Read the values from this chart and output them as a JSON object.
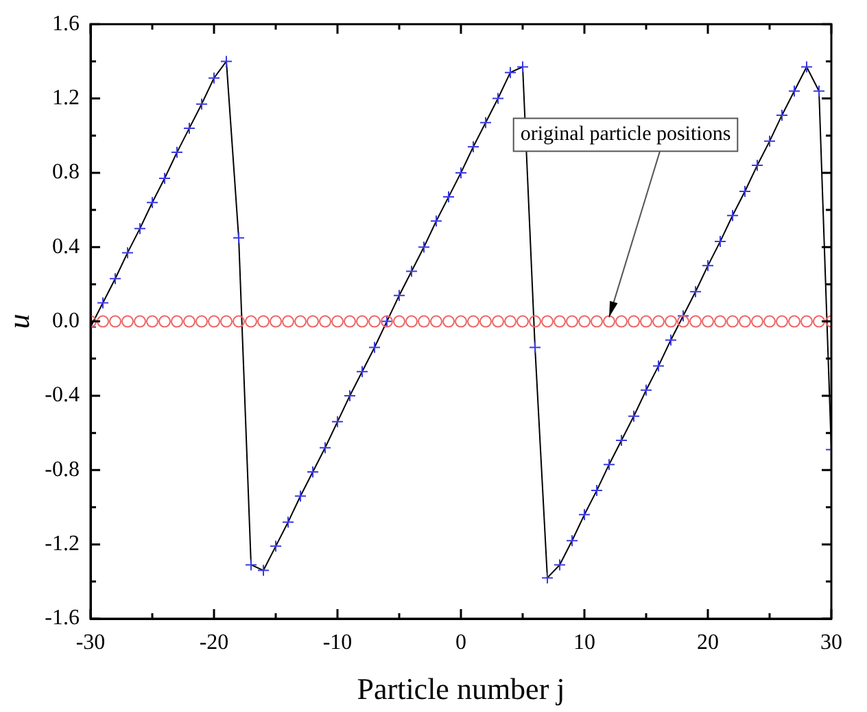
{
  "chart_data": {
    "type": "line",
    "xlabel": "Particle number j",
    "ylabel": "u",
    "xlim": [
      -30,
      30
    ],
    "xticks": [
      -30,
      {
        "value": -25,
        "label": null
      },
      -20,
      {
        "value": -15,
        "label": null
      },
      -10,
      {
        "value": -5,
        "label": null
      },
      0,
      {
        "value": 5,
        "label": null
      },
      10,
      {
        "value": 15,
        "label": null
      },
      20,
      {
        "value": 25,
        "label": null
      },
      30
    ],
    "ylim": [
      -1.6,
      1.6
    ],
    "yticks": [
      {
        "value": -1.6,
        "label": "-1.6"
      },
      {
        "value": -1.4,
        "label": null
      },
      {
        "value": -1.2,
        "label": "-1.2"
      },
      {
        "value": -1.0,
        "label": null
      },
      {
        "value": -0.8,
        "label": "-0.8"
      },
      {
        "value": -0.6,
        "label": null
      },
      {
        "value": -0.4,
        "label": "-0.4"
      },
      {
        "value": -0.2,
        "label": null
      },
      {
        "value": 0,
        "label": "0.0"
      },
      {
        "value": 0.2,
        "label": null
      },
      {
        "value": 0.4,
        "label": "0.4"
      },
      {
        "value": 0.6,
        "label": null
      },
      {
        "value": 0.8,
        "label": "0.8"
      },
      {
        "value": 1.0,
        "label": null
      },
      {
        "value": 1.2,
        "label": "1.2"
      },
      {
        "value": 1.4,
        "label": null
      },
      {
        "value": 1.6,
        "label": "1.6"
      }
    ],
    "x": [
      -30,
      -29,
      -28,
      -27,
      -26,
      -25,
      -24,
      -23,
      -22,
      -21,
      -20,
      -19,
      -18,
      -17,
      -16,
      -15,
      -14,
      -13,
      -12,
      -11,
      -10,
      -9,
      -8,
      -7,
      -6,
      -5,
      -4,
      -3,
      -2,
      -1,
      0,
      1,
      2,
      3,
      4,
      5,
      6,
      7,
      8,
      9,
      10,
      11,
      12,
      13,
      14,
      15,
      16,
      17,
      18,
      19,
      20,
      21,
      22,
      23,
      24,
      25,
      26,
      27,
      28,
      29,
      30
    ],
    "series": [
      {
        "marker": "none",
        "color": "#000000",
        "values": [
          -0.03,
          0.1,
          0.23,
          0.37,
          0.5,
          0.64,
          0.77,
          0.91,
          1.04,
          1.17,
          1.31,
          1.4,
          0.45,
          -1.31,
          -1.34,
          -1.21,
          -1.08,
          -0.94,
          -0.81,
          -0.68,
          -0.54,
          -0.4,
          -0.27,
          -0.14,
          0.0,
          0.14,
          0.27,
          0.4,
          0.54,
          0.67,
          0.8,
          0.94,
          1.07,
          1.2,
          1.34,
          1.37,
          -0.14,
          -1.38,
          -1.31,
          -1.18,
          -1.04,
          -0.91,
          -0.77,
          -0.64,
          -0.51,
          -0.37,
          -0.24,
          -0.1,
          0.03,
          0.16,
          0.3,
          0.43,
          0.57,
          0.7,
          0.84,
          0.97,
          1.11,
          1.24,
          1.37,
          1.24,
          -0.69
        ]
      },
      {
        "type": "scatter",
        "marker": "cross",
        "color": "#3a3ae0",
        "values": [
          -0.03,
          0.1,
          0.23,
          0.37,
          0.5,
          0.64,
          0.77,
          0.91,
          1.04,
          1.17,
          1.31,
          1.4,
          0.45,
          -1.31,
          -1.34,
          -1.21,
          -1.08,
          -0.94,
          -0.81,
          -0.68,
          -0.54,
          -0.4,
          -0.27,
          -0.14,
          0.0,
          0.14,
          0.27,
          0.4,
          0.54,
          0.67,
          0.8,
          0.94,
          1.07,
          1.2,
          1.34,
          1.37,
          -0.14,
          -1.38,
          -1.31,
          -1.18,
          -1.04,
          -0.91,
          -0.77,
          -0.64,
          -0.51,
          -0.37,
          -0.24,
          -0.1,
          0.03,
          0.16,
          0.3,
          0.43,
          0.57,
          0.7,
          0.84,
          0.97,
          1.11,
          1.24,
          1.37,
          1.24,
          -0.69
        ]
      },
      {
        "type": "scatter",
        "marker": "circle",
        "color": "#f06464",
        "values": [
          0,
          0,
          0,
          0,
          0,
          0,
          0,
          0,
          0,
          0,
          0,
          0,
          0,
          0,
          0,
          0,
          0,
          0,
          0,
          0,
          0,
          0,
          0,
          0,
          0,
          0,
          0,
          0,
          0,
          0,
          0,
          0,
          0,
          0,
          0,
          0,
          0,
          0,
          0,
          0,
          0,
          0,
          0,
          0,
          0,
          0,
          0,
          0,
          0,
          0,
          0,
          0,
          0,
          0,
          0,
          0,
          0,
          0,
          0,
          0,
          0
        ]
      }
    ],
    "annotations": [
      {
        "text": "original particle positions",
        "x": 12,
        "y": 0
      }
    ],
    "grid": false,
    "legend": false
  }
}
